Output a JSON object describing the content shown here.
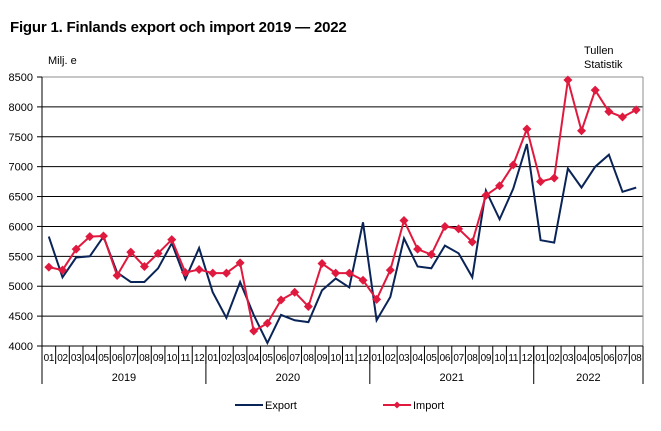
{
  "chart_data": {
    "type": "line",
    "title": "Figur 1. Finlands export och import 2019 — 2022",
    "ylabel": "Milj. e",
    "source": [
      "Tullen",
      "Statistik"
    ],
    "ylim": [
      4000,
      8500
    ],
    "yticks": [
      4000,
      4500,
      5000,
      5500,
      6000,
      6500,
      7000,
      7500,
      8000,
      8500
    ],
    "grid": true,
    "legend_position": "bottom",
    "years": [
      {
        "label": "2019",
        "months": 12
      },
      {
        "label": "2020",
        "months": 12
      },
      {
        "label": "2021",
        "months": 12
      },
      {
        "label": "2022",
        "months": 8
      }
    ],
    "categories": [
      "01",
      "02",
      "03",
      "04",
      "05",
      "06",
      "07",
      "08",
      "09",
      "10",
      "11",
      "12",
      "01",
      "02",
      "03",
      "04",
      "05",
      "06",
      "07",
      "08",
      "09",
      "10",
      "11",
      "12",
      "01",
      "02",
      "03",
      "04",
      "05",
      "06",
      "07",
      "08",
      "09",
      "10",
      "11",
      "12",
      "01",
      "02",
      "03",
      "04",
      "05",
      "06",
      "07",
      "08"
    ],
    "series": [
      {
        "name": "Export",
        "color": "#0a2458",
        "marker": "none",
        "values": [
          5830,
          5150,
          5480,
          5500,
          5830,
          5230,
          5070,
          5070,
          5300,
          5720,
          5120,
          5640,
          4900,
          4470,
          5070,
          4520,
          4050,
          4520,
          4430,
          4400,
          4930,
          5130,
          4980,
          6070,
          4430,
          4820,
          5800,
          5330,
          5300,
          5680,
          5550,
          5150,
          6600,
          6120,
          6630,
          7380,
          5770,
          5730,
          6970,
          6650,
          7000,
          7200,
          6580,
          6650
        ]
      },
      {
        "name": "Import",
        "color": "#e0193e",
        "marker": "diamond",
        "values": [
          5320,
          5270,
          5620,
          5830,
          5840,
          5180,
          5570,
          5330,
          5550,
          5780,
          5230,
          5280,
          5220,
          5220,
          5390,
          4250,
          4380,
          4770,
          4900,
          4660,
          5380,
          5220,
          5220,
          5100,
          4780,
          5270,
          6100,
          5620,
          5530,
          6000,
          5960,
          5740,
          6520,
          6680,
          7030,
          7630,
          6750,
          6810,
          8450,
          7600,
          8280,
          7920,
          7830,
          7950
        ]
      }
    ]
  }
}
